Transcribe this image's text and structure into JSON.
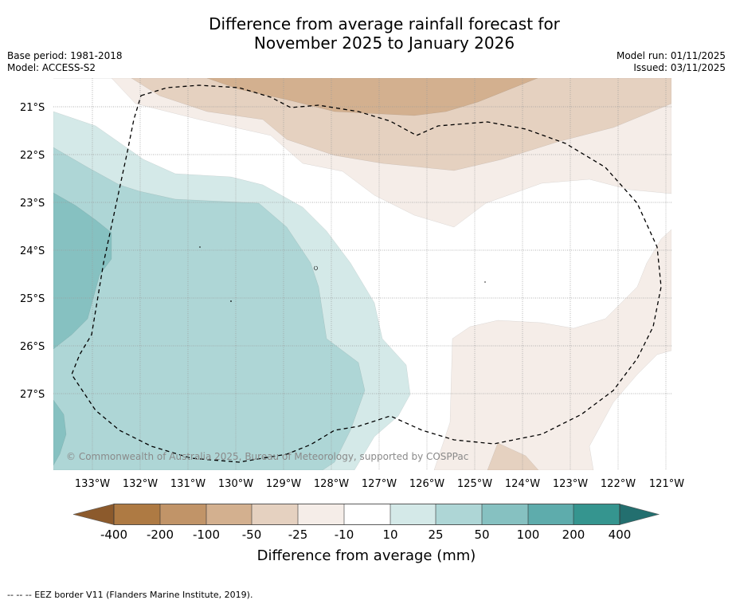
{
  "header": {
    "title_line1": "Difference from average rainfall forecast for",
    "title_line2": "November 2025 to January 2026",
    "base_period": "Base period: 1981-2018",
    "model": "Model: ACCESS-S2",
    "model_run": "Model run: 01/11/2025",
    "issued": "Issued: 03/11/2025"
  },
  "map": {
    "latitude_labels": [
      "21°S",
      "22°S",
      "23°S",
      "24°S",
      "25°S",
      "26°S",
      "27°S"
    ],
    "longitude_labels": [
      "133°W",
      "132°W",
      "131°W",
      "130°W",
      "129°W",
      "128°W",
      "127°W",
      "126°W",
      "125°W",
      "124°W",
      "123°W",
      "122°W",
      "121°W"
    ],
    "copyright": "© Commonwealth of Australia 2025, Bureau of Meteorology, supported by COSPPac",
    "colors": {
      "dry_400": "#8c5a2c",
      "dry_200": "#ae7a43",
      "dry_100": "#c19468",
      "dry_50": "#d3b08f",
      "dry_25": "#e5d1c0",
      "dry_10": "#f5ede8",
      "neutral": "#ffffff",
      "wet_10": "#d4e9e8",
      "wet_25": "#aed6d6",
      "wet_50": "#86c1c1",
      "wet_100": "#5eacac",
      "wet_200": "#35958f",
      "wet_400": "#236f6f"
    }
  },
  "colorbar": {
    "labels": [
      "-400",
      "-200",
      "-100",
      "-50",
      "-25",
      "-10",
      "10",
      "25",
      "50",
      "100",
      "200",
      "400"
    ],
    "title": "Difference from average (mm)"
  },
  "footnote": "--  --  -- EEZ border V11 (Flanders Marine Institute, 2019)."
}
